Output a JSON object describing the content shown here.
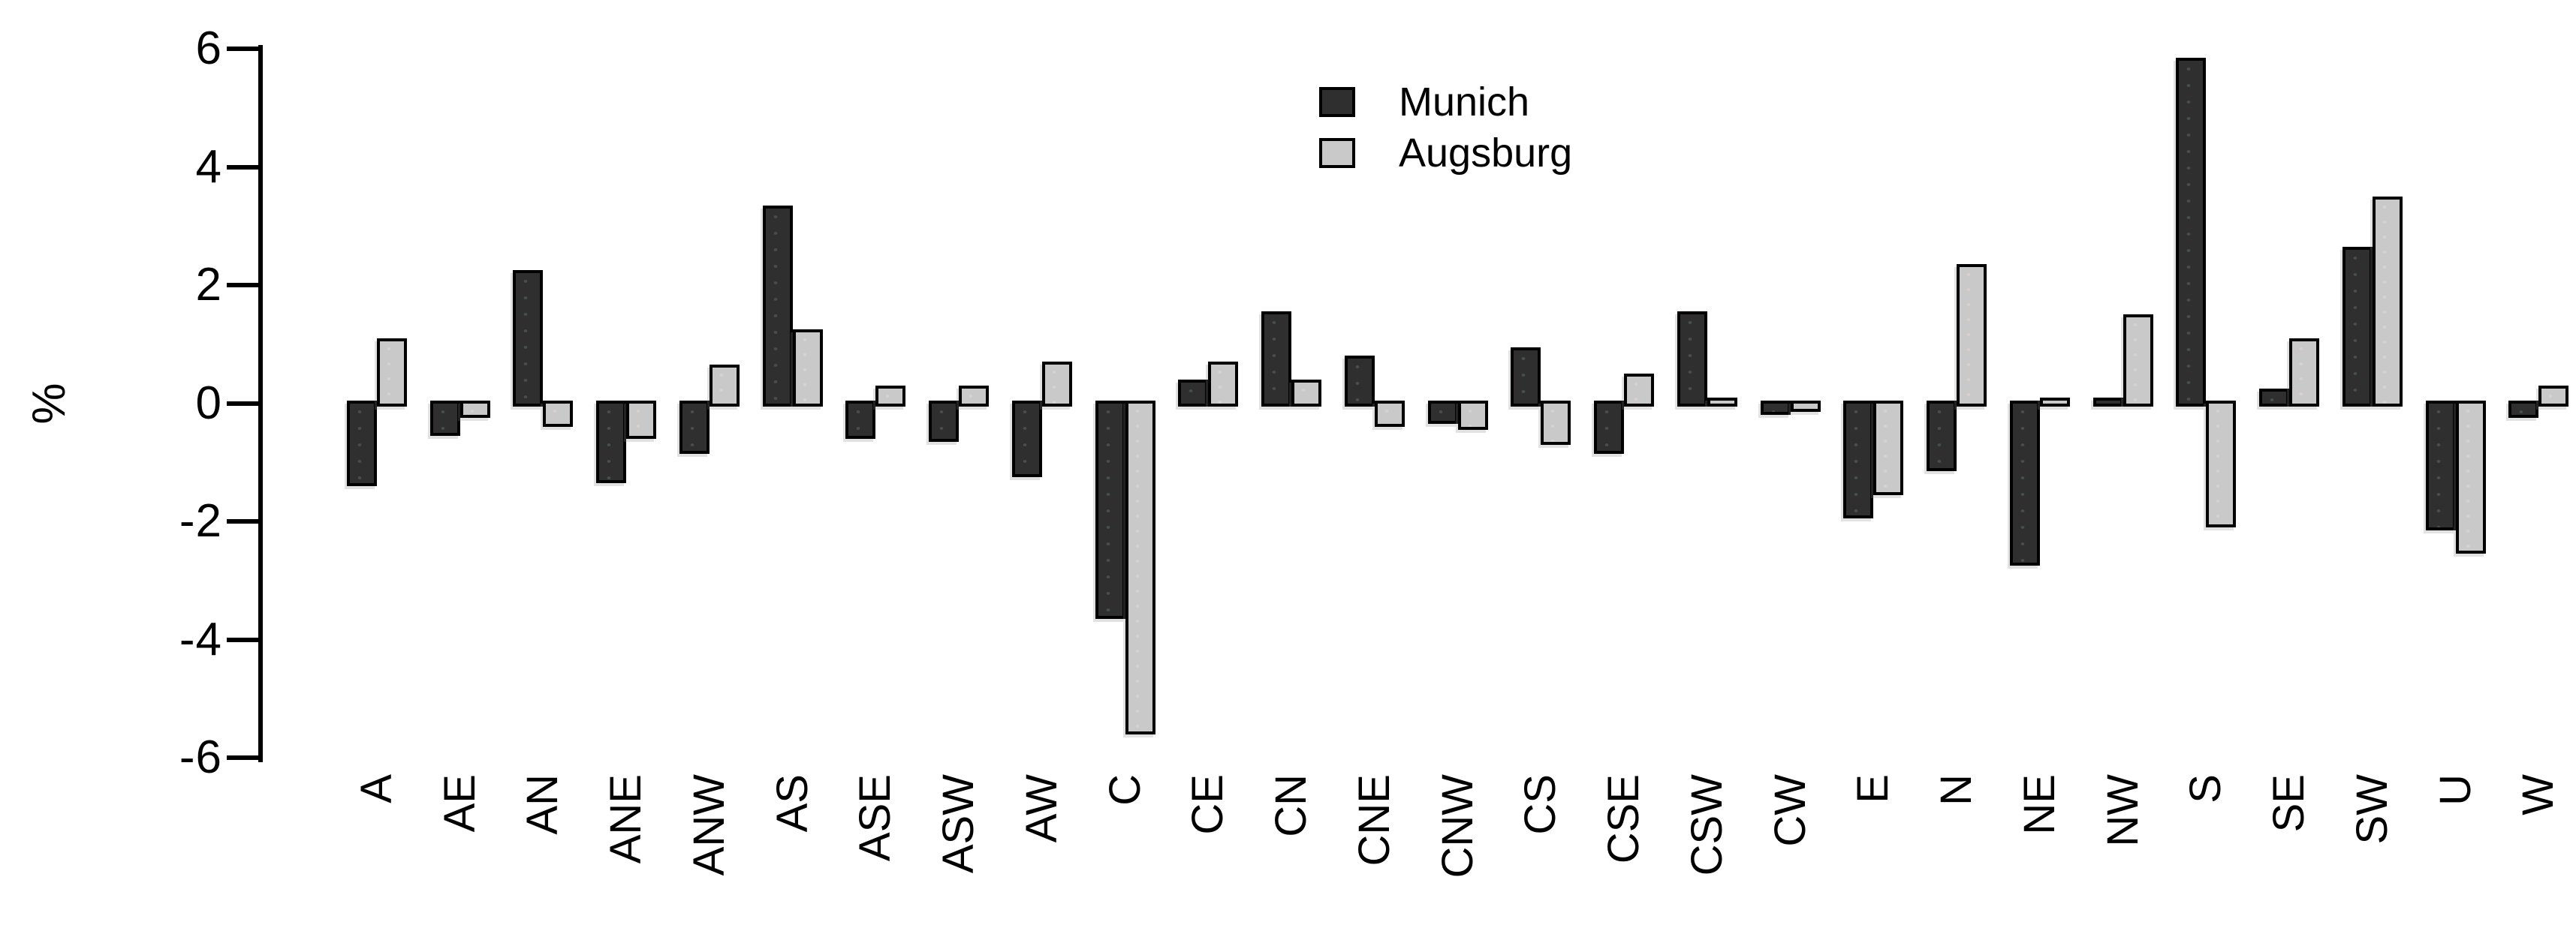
{
  "chart_data": {
    "type": "bar",
    "title": "",
    "xlabel": "",
    "ylabel": "%",
    "ylim": [
      -6,
      6
    ],
    "yticks": [
      6,
      4,
      2,
      0,
      -2,
      -4,
      -6
    ],
    "grid": false,
    "legend_position": "top-center",
    "background": "#ffffff",
    "bar_border_color": "#000000",
    "categories": [
      "A",
      "AE",
      "AN",
      "ANE",
      "ANW",
      "AS",
      "ASE",
      "ASW",
      "AW",
      "C",
      "CE",
      "CN",
      "CNE",
      "CNW",
      "CS",
      "CSE",
      "CSW",
      "CW",
      "E",
      "N",
      "NE",
      "NW",
      "S",
      "SE",
      "SW",
      "U",
      "W"
    ],
    "series": [
      {
        "name": "Munich",
        "color": "#2f2f2f",
        "values": [
          -1.35,
          -0.5,
          2.2,
          -1.3,
          -0.8,
          3.3,
          -0.55,
          -0.6,
          -1.2,
          -3.6,
          0.35,
          1.5,
          0.75,
          -0.3,
          0.9,
          -0.8,
          1.5,
          -0.15,
          -1.9,
          -1.1,
          -2.7,
          0.05,
          5.8,
          0.2,
          2.6,
          -2.1,
          -0.2
        ]
      },
      {
        "name": "Augsburg",
        "color": "#c9c9c9",
        "values": [
          1.05,
          -0.2,
          -0.35,
          -0.55,
          0.6,
          1.2,
          0.25,
          0.25,
          0.65,
          -5.55,
          0.65,
          0.35,
          -0.35,
          -0.4,
          -0.65,
          0.45,
          0.05,
          -0.1,
          -1.5,
          2.3,
          0.05,
          1.45,
          -2.05,
          1.05,
          3.45,
          -2.5,
          0.25
        ]
      }
    ]
  }
}
